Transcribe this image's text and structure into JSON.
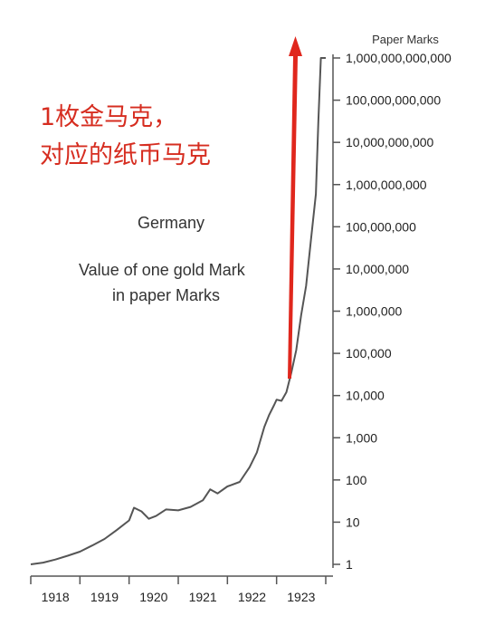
{
  "annotation": {
    "line1": "1枚金马克，",
    "line2": "对应的纸币马克",
    "color": "#d62d20"
  },
  "chart_data": {
    "type": "line",
    "title": "Germany",
    "subtitle_line1": "Value of one gold Mark",
    "subtitle_line2": "in paper Marks",
    "ylabel": "Paper Marks",
    "xlabel": "",
    "yscale": "log",
    "ylim": [
      1,
      1000000000000
    ],
    "y_ticks": [
      1,
      10,
      100,
      1000,
      10000,
      100000,
      1000000,
      10000000,
      100000000,
      1000000000,
      10000000000,
      100000000000,
      1000000000000
    ],
    "y_tick_labels": [
      "1",
      "10",
      "100",
      "1,000",
      "10,000",
      "100,000",
      "1,000,000",
      "10,000,000",
      "100,000,000",
      "1,000,000,000",
      "10,000,000,000",
      "100,000,000,000",
      "1,000,000,000,000"
    ],
    "x_tick_labels": [
      "1918",
      "1919",
      "1920",
      "1921",
      "1922",
      "1923"
    ],
    "xlim": [
      1918,
      1924
    ],
    "line_color": "#555555",
    "arrow_color": "#e0271d",
    "series": [
      {
        "x": [
          1918.0,
          1918.25,
          1918.5,
          1918.75,
          1919.0,
          1919.25,
          1919.5,
          1919.75,
          1920.0,
          1920.1,
          1920.25,
          1920.4,
          1920.55,
          1920.75,
          1921.0,
          1921.25,
          1921.5,
          1921.65,
          1921.8,
          1922.0,
          1922.25,
          1922.45,
          1922.6,
          1922.75,
          1922.85,
          1922.95,
          1923.0,
          1923.1,
          1923.2,
          1923.3,
          1923.4,
          1923.5,
          1923.6,
          1923.7,
          1923.8,
          1923.85,
          1923.9,
          1924.0
        ],
        "y": [
          1.0,
          1.1,
          1.3,
          1.6,
          2.0,
          2.8,
          4.0,
          6.5,
          11,
          22,
          18,
          12,
          14,
          20,
          19,
          23,
          33,
          60,
          48,
          70,
          90,
          200,
          450,
          1800,
          3500,
          6000,
          8000,
          7500,
          12000,
          35000,
          120000,
          800000,
          4000000,
          50000000,
          600000000,
          30000000000,
          1000000000000,
          1000000000000
        ]
      }
    ]
  }
}
